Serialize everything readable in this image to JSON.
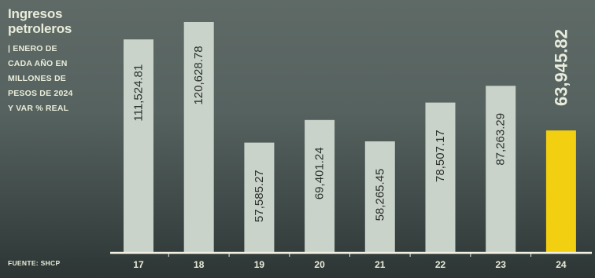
{
  "chart_data": {
    "type": "bar",
    "title": "Ingresos\npetroleros",
    "subtitle": "| ENERO DE\nCADA AÑO EN\nMILLONES DE\nPESOS DE 2024\nY VAR % REAL",
    "source": "FUENTE: SHCP",
    "categories": [
      "17",
      "18",
      "19",
      "20",
      "21",
      "22",
      "23",
      "24"
    ],
    "values": [
      111524.81,
      120628.78,
      57585.27,
      69401.24,
      58265.45,
      78507.17,
      87263.29,
      63945.82
    ],
    "value_labels": [
      "111,524.81",
      "120,628.78",
      "57,585.27",
      "69,401.24",
      "58,265.45",
      "78,507.17",
      "87,263.29",
      "63,945.82"
    ],
    "highlight_index": 7,
    "xlabel": "",
    "ylabel": "",
    "ylim": [
      0,
      128000
    ],
    "grid": false,
    "colors": {
      "bar": "#c9d3ca",
      "highlight_bar": "#f2cf10",
      "label_dark": "#2b2f2c",
      "label_light": "#e8ecdc",
      "axis": "#f2f0e2",
      "tick_text": "#e9ecd9"
    }
  }
}
